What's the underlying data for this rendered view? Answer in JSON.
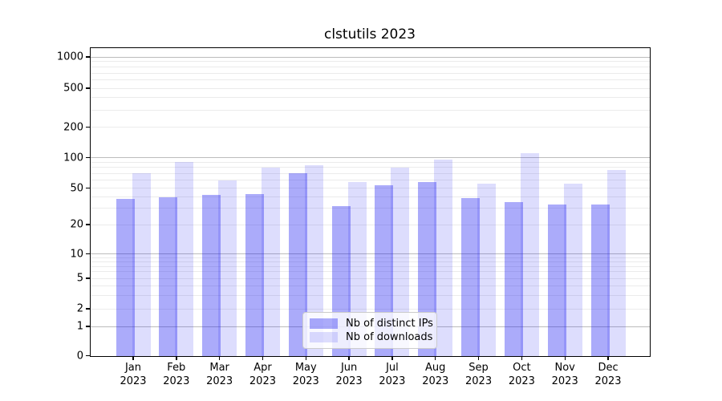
{
  "title": "clstutils 2023",
  "chart_data": {
    "type": "bar",
    "title": "clstutils 2023",
    "categories": [
      "Jan 2023",
      "Feb 2023",
      "Mar 2023",
      "Apr 2023",
      "May 2023",
      "Jun 2023",
      "Jul 2023",
      "Aug 2023",
      "Sep 2023",
      "Oct 2023",
      "Nov 2023",
      "Dec 2023"
    ],
    "months": [
      "Jan",
      "Feb",
      "Mar",
      "Apr",
      "May",
      "Jun",
      "Jul",
      "Aug",
      "Sep",
      "Oct",
      "Nov",
      "Dec"
    ],
    "year": "2023",
    "series": [
      {
        "name": "Nb of distinct IPs",
        "color": "rgba(25,25,242,0.365)",
        "values": [
          38,
          40,
          42,
          43,
          70,
          32,
          53,
          57,
          39,
          35,
          33,
          33
        ]
      },
      {
        "name": "Nb of downloads",
        "color": "rgba(25,25,242,0.15)",
        "values": [
          70,
          90,
          60,
          79,
          84,
          57,
          79,
          95,
          55,
          110,
          55,
          75
        ]
      }
    ],
    "xlabel": "",
    "ylabel": "",
    "yscale": "symlog",
    "yticks": [
      0,
      1,
      2,
      5,
      10,
      20,
      50,
      100,
      200,
      500,
      1000
    ],
    "ylim": [
      0,
      1150
    ],
    "grid": true,
    "legend_position": "lower center"
  },
  "colors": {
    "bar_dark": "rgba(25,25,242,0.365)",
    "bar_light": "rgba(25,25,242,0.15)",
    "major_grid": "#bcbcbc",
    "minor_grid": "#ebebeb",
    "axis": "#000000",
    "legend_border": "#cccccc"
  }
}
